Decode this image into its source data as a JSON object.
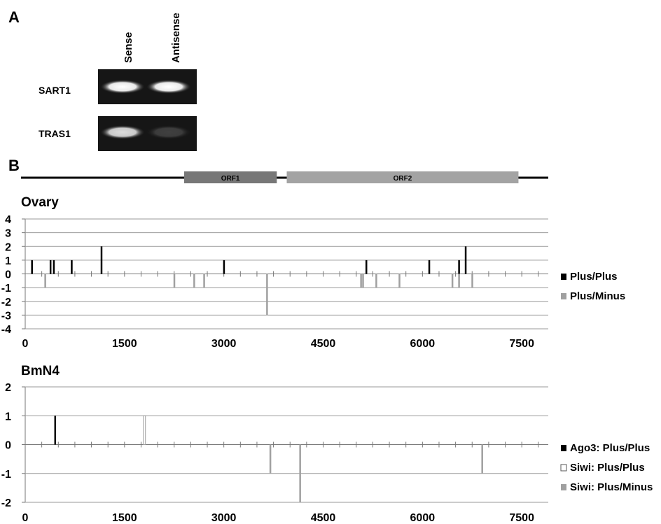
{
  "panel_a": {
    "label": "A",
    "columns": [
      "Sense",
      "Antisense"
    ],
    "rows": [
      {
        "name": "SART1",
        "bands": [
          1.0,
          1.0
        ]
      },
      {
        "name": "TRAS1",
        "bands": [
          0.85,
          0.18
        ]
      }
    ]
  },
  "panel_b": {
    "label": "B",
    "orfs": [
      {
        "name": "ORF1",
        "start": 2400,
        "end": 3800,
        "color": "#777777"
      },
      {
        "name": "ORF2",
        "start": 3950,
        "end": 7450,
        "color": "#a3a3a3"
      }
    ]
  },
  "colors": {
    "plus_plus": "#000000",
    "plus_minus": "#a0a0a0",
    "siwi_plus_plus": "#ffffff",
    "grid": "#999999"
  },
  "chart_data": [
    {
      "type": "bar",
      "title": "Ovary",
      "xlim": [
        0,
        7900
      ],
      "ylim": [
        -4,
        4
      ],
      "xticks": [
        0,
        1500,
        3000,
        4500,
        6000,
        7500
      ],
      "yticks": [
        4,
        3,
        2,
        1,
        0,
        -1,
        -2,
        -3,
        -4
      ],
      "legend_position": "right",
      "series": [
        {
          "name": "Plus/Plus",
          "style": "filled-black",
          "x": [
            100,
            380,
            430,
            700,
            1150,
            3000,
            5150,
            6100,
            6550,
            6650
          ],
          "y": [
            1,
            1,
            1,
            1,
            2,
            1,
            1,
            1,
            1,
            2
          ]
        },
        {
          "name": "Plus/Minus",
          "style": "filled-gray",
          "x": [
            300,
            2250,
            2550,
            2700,
            3650,
            5070,
            5100,
            5300,
            5650,
            6450,
            6550,
            6750
          ],
          "y": [
            -1,
            -1,
            -1,
            -1,
            -3,
            -1,
            -1,
            -1,
            -1,
            -1,
            -1,
            -1
          ]
        }
      ]
    },
    {
      "type": "bar",
      "title": "BmN4",
      "xlim": [
        0,
        7900
      ],
      "ylim": [
        -2,
        2
      ],
      "xticks": [
        0,
        1500,
        3000,
        4500,
        6000,
        7500
      ],
      "yticks": [
        2,
        1,
        0,
        -1,
        -2
      ],
      "legend_position": "right",
      "series": [
        {
          "name": "Ago3: Plus/Plus",
          "style": "filled-black",
          "x": [
            450
          ],
          "y": [
            1
          ]
        },
        {
          "name": "Siwi: Plus/Plus",
          "style": "hollow",
          "x": [
            1800
          ],
          "y": [
            1
          ]
        },
        {
          "name": "Siwi: Plus/Minus",
          "style": "filled-gray",
          "x": [
            3700,
            4150,
            6900
          ],
          "y": [
            -1,
            -2,
            -1
          ]
        }
      ]
    }
  ]
}
